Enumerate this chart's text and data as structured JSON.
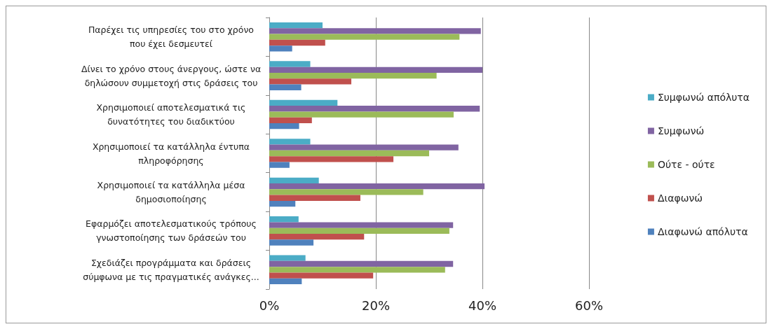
{
  "chart_data": {
    "type": "bar",
    "orientation": "horizontal",
    "categories": [
      "Παρέχει τις υπηρεσίες του στο χρόνο\nπου έχει δεσμευτεί",
      "Δίνει το χρόνο στους άνεργους, ώστε να\nδηλώσουν συμμετοχή στις δράσεις του",
      "Χρησιμοποιεί αποτελεσματικά τις\nδυνατότητες του διαδικτύου",
      "Χρησιμοποιεί τα κατάλληλα έντυπα\nπληροφόρησης",
      "Χρησιμοποιεί τα κατάλληλα μέσα\nδημοσιοποίησης",
      "Εφαρμόζει αποτελεσματικούς τρόπους\nγνωστοποίησης των δράσεών του",
      "Σχεδιάζει προγράμματα και δράσεις\nσύμφωνα με τις πραγματικές ανάγκες..."
    ],
    "series": [
      {
        "name": "Συμφωνώ απόλυτα",
        "color": "#4bacc6",
        "values": [
          10,
          7.7,
          12.8,
          7.7,
          9.3,
          5.5,
          6.8
        ]
      },
      {
        "name": "Συμφωνώ",
        "color": "#8064a2",
        "values": [
          39.7,
          40,
          39.5,
          35.5,
          40.4,
          34.5,
          34.5
        ]
      },
      {
        "name": "Ούτε - ούτε",
        "color": "#9bbb59",
        "values": [
          35.7,
          31.4,
          34.6,
          30,
          28.9,
          33.8,
          33
        ]
      },
      {
        "name": "Διαφωνώ",
        "color": "#c0504d",
        "values": [
          10.5,
          15.4,
          8,
          23.3,
          17.1,
          17.8,
          19.5
        ]
      },
      {
        "name": "Διαφωνώ απόλυτα",
        "color": "#4f81bd",
        "values": [
          4.3,
          6,
          5.6,
          3.8,
          4.9,
          8.3,
          6.1
        ]
      }
    ],
    "xlim": [
      0,
      60
    ],
    "xticks": [
      {
        "value": 0,
        "label": "0%"
      },
      {
        "value": 20,
        "label": "20%"
      },
      {
        "value": 40,
        "label": "40%"
      },
      {
        "value": 60,
        "label": "60%"
      }
    ],
    "grid": "x",
    "legend": "right"
  }
}
